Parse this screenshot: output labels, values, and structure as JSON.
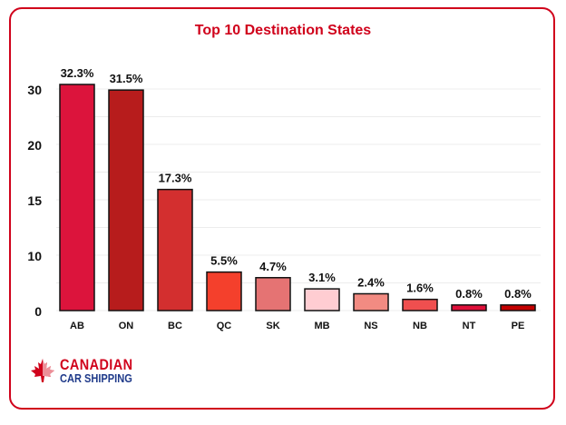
{
  "chart_data": {
    "type": "bar",
    "title": "Top 10 Destination States",
    "categories": [
      "AB",
      "ON",
      "BC",
      "QC",
      "SK",
      "MB",
      "NS",
      "NB",
      "NT",
      "PE"
    ],
    "values": [
      32.3,
      31.5,
      17.3,
      5.5,
      4.7,
      3.1,
      2.4,
      1.6,
      0.8,
      0.8
    ],
    "data_labels": [
      "32.3%",
      "31.5%",
      "17.3%",
      "5.5%",
      "4.7%",
      "3.1%",
      "2.4%",
      "1.6%",
      "0.8%",
      "0.8%"
    ],
    "colors": [
      "#dc143c",
      "#b71c1c",
      "#d32f2f",
      "#f4402c",
      "#e57373",
      "#ffcdd2",
      "#f28b82",
      "#ef4f4f",
      "#e0103a",
      "#c40000"
    ],
    "y_tick_labels": [
      "0",
      "10",
      "15",
      "20",
      "30"
    ],
    "xlabel": "",
    "ylabel": "",
    "grid": true,
    "legend": "none"
  },
  "brand": {
    "line1": "CANADIAN",
    "line2": "CAR SHIPPING"
  },
  "accent": "#d0021b"
}
